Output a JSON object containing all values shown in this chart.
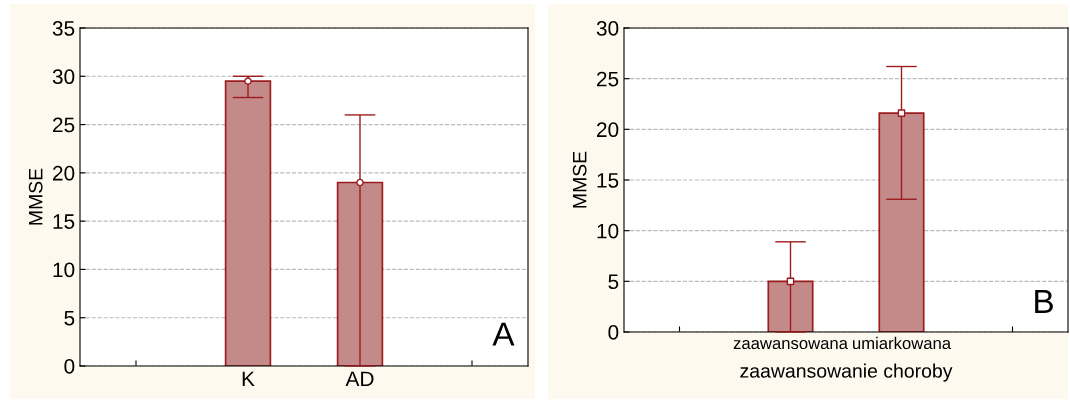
{
  "chart_data": [
    {
      "type": "bar",
      "ylabel": "MMSE",
      "categories": [
        "K",
        "AD"
      ],
      "series": [
        {
          "type": "bar",
          "color": "#c48a8a",
          "values": [
            29.5,
            19.0
          ],
          "errors": [
            [
              27.8,
              30.0
            ],
            [
              0,
              26.0
            ]
          ]
        },
        {
          "type": "scatter",
          "color": "#ffffff",
          "marker": "circle",
          "x": [
            "K",
            "AD"
          ],
          "values": [
            29.5,
            19.0
          ]
        }
      ],
      "ylim": [
        0,
        35
      ],
      "yticks": [
        0,
        5,
        10,
        15,
        20,
        25,
        30,
        35
      ],
      "grid": "y",
      "annotations": [
        "A"
      ]
    },
    {
      "type": "bar",
      "ylabel": "MMSE",
      "xlabel": "zaawansowanie choroby",
      "categories": [
        "zaawansowana",
        "umiarkowana"
      ],
      "series": [
        {
          "type": "bar",
          "color": "#c48a8a",
          "values": [
            5.0,
            21.6
          ],
          "errors": [
            [
              0,
              8.9
            ],
            [
              13.1,
              26.2
            ]
          ]
        },
        {
          "type": "scatter",
          "color": "#ffffff",
          "marker": "square",
          "x": [
            "zaawansowana",
            "umiarkowana"
          ],
          "values": [
            5.0,
            21.6
          ]
        }
      ],
      "ylim": [
        0,
        30
      ],
      "yticks": [
        0,
        5,
        10,
        15,
        20,
        25,
        30
      ],
      "grid": "y",
      "annotations": [
        "B"
      ]
    }
  ]
}
